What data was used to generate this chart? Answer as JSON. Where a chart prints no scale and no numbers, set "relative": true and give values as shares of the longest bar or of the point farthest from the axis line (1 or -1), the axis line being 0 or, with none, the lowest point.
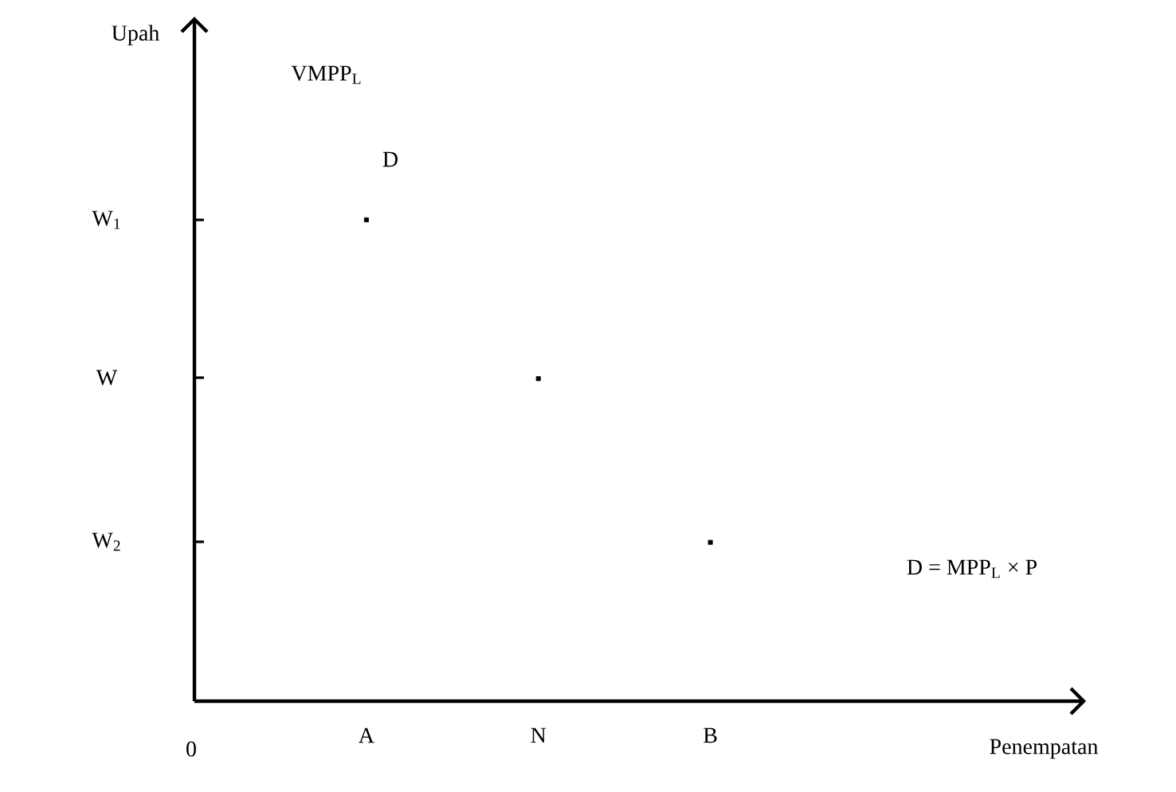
{
  "chart_data": {
    "type": "scatter",
    "categories": [
      "A",
      "N",
      "B"
    ],
    "series": [
      {
        "color": "#000000",
        "values": [
          1,
          0.67,
          0.33
        ]
      }
    ],
    "relative": true,
    "marker": "square",
    "annotations": [
      "VMPP$_{L}$",
      "D",
      "D = MPP$_{L}$ × P",
      "0",
      "W$_{1}$",
      "W",
      "W$_{2}$",
      "Upah",
      "Penempatan"
    ]
  }
}
